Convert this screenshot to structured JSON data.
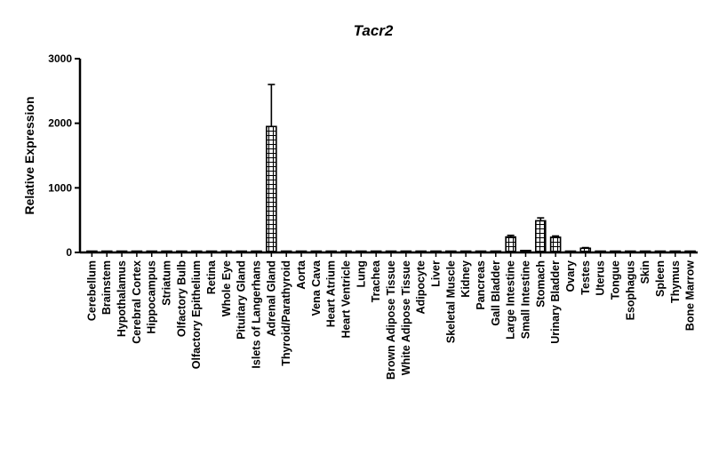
{
  "chart_data": {
    "type": "bar",
    "title": "Tacr2",
    "ylabel": "Relative Expression",
    "xlabel": "",
    "ylim": [
      0,
      3000
    ],
    "yticks": [
      0,
      1000,
      2000,
      3000
    ],
    "ytick_labels": [
      "0",
      "1000",
      "2000",
      "3000"
    ],
    "categories": [
      "Cerebellum",
      "Brainstem",
      "Hypothalamus",
      "Cerebral Cortex",
      "Hippocampus",
      "Striatum",
      "Olfactory Bulb",
      "Olfactory Epithelium",
      "Retina",
      "Whole Eye",
      "Pituitary Gland",
      "Islets of Langerhans",
      "Adrenal Gland",
      "Thyroid/Parathyroid",
      "Aorta",
      "Vena Cava",
      "Heart Atrium",
      "Heart Ventricle",
      "Lung",
      "Trachea",
      "Brown Adipose Tissue",
      "White Adipose Tissue",
      "Adipocyte",
      "Liver",
      "Skeletal Muscle",
      "Kidney",
      "Pancreas",
      "Gall Bladder",
      "Large Intestine",
      "Small Intestine",
      "Stomach",
      "Urinary Bladder",
      "Ovary",
      "Testes",
      "Uterus",
      "Tongue",
      "Esophagus",
      "Skin",
      "Spleen",
      "Thymus",
      "Bone Marrow"
    ],
    "values": [
      5,
      5,
      5,
      5,
      5,
      5,
      5,
      5,
      5,
      8,
      5,
      5,
      1950,
      5,
      5,
      8,
      5,
      5,
      8,
      5,
      5,
      5,
      5,
      5,
      5,
      5,
      5,
      5,
      240,
      30,
      490,
      235,
      5,
      65,
      5,
      5,
      5,
      5,
      5,
      5,
      5
    ],
    "errors": [
      0,
      0,
      0,
      0,
      0,
      0,
      0,
      0,
      0,
      0,
      0,
      0,
      650,
      0,
      0,
      0,
      0,
      0,
      0,
      0,
      0,
      0,
      0,
      0,
      0,
      0,
      0,
      0,
      25,
      0,
      45,
      20,
      0,
      10,
      0,
      0,
      0,
      0,
      0,
      0,
      0
    ],
    "grid": false,
    "bar_fill": "hatched",
    "colors": {
      "bar": "#000000",
      "background": "#ffffff"
    }
  }
}
